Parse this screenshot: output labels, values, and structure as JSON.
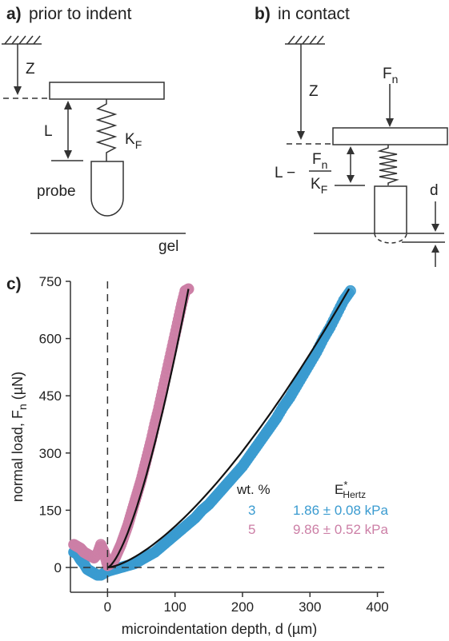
{
  "panel_a": {
    "letter": "a)",
    "title": "prior to indent",
    "labels": {
      "z": "Z",
      "l": "L",
      "kf_main": "K",
      "kf_sub": "F",
      "probe": "probe",
      "gel": "gel"
    }
  },
  "panel_b": {
    "letter": "b)",
    "title": "in contact",
    "labels": {
      "z": "Z",
      "fn_main": "F",
      "fn_sub": "n",
      "l_minus": "L −",
      "frac_num_main": "F",
      "frac_num_sub": "n",
      "frac_den_main": "K",
      "frac_den_sub": "F",
      "d": "d"
    }
  },
  "panel_c": {
    "letter": "c)",
    "legend": {
      "header_wt": "wt. %",
      "header_e_main": "E",
      "header_e_sup": "*",
      "header_e_sub": "Hertz",
      "rows": [
        {
          "wt": "3",
          "value": "1.86 ± 0.08 kPa",
          "color": "#3a9bd0"
        },
        {
          "wt": "5",
          "value": "9.86 ± 0.52 kPa",
          "color": "#cc7fa6"
        }
      ]
    }
  },
  "chart_data": {
    "type": "scatter",
    "xlabel": "microindentation depth, d (µm)",
    "ylabel_main": "normal load, F",
    "ylabel_sub": "n",
    "ylabel_unit": " (µN)",
    "xlim": [
      -55,
      410
    ],
    "ylim": [
      -65,
      750
    ],
    "x_ticks": [
      0,
      100,
      200,
      300,
      400
    ],
    "y_ticks": [
      0,
      150,
      300,
      450,
      600,
      750
    ],
    "reference_lines": {
      "x": 0,
      "y": 0,
      "style": "dashed"
    },
    "series": [
      {
        "name": "3",
        "color": "#3a9bd0",
        "points": [
          [
            -50,
            40
          ],
          [
            -45,
            35
          ],
          [
            -40,
            20
          ],
          [
            -35,
            10
          ],
          [
            -30,
            -5
          ],
          [
            -25,
            -10
          ],
          [
            -20,
            -15
          ],
          [
            -15,
            -20
          ],
          [
            -10,
            -20
          ],
          [
            -5,
            -15
          ],
          [
            0,
            -10
          ],
          [
            10,
            -5
          ],
          [
            20,
            0
          ],
          [
            30,
            5
          ],
          [
            40,
            10
          ],
          [
            50,
            20
          ],
          [
            60,
            30
          ],
          [
            70,
            40
          ],
          [
            80,
            55
          ],
          [
            90,
            70
          ],
          [
            100,
            85
          ],
          [
            110,
            100
          ],
          [
            120,
            115
          ],
          [
            130,
            130
          ],
          [
            140,
            150
          ],
          [
            150,
            165
          ],
          [
            160,
            185
          ],
          [
            170,
            205
          ],
          [
            180,
            225
          ],
          [
            190,
            245
          ],
          [
            200,
            265
          ],
          [
            210,
            290
          ],
          [
            220,
            315
          ],
          [
            230,
            340
          ],
          [
            240,
            365
          ],
          [
            250,
            390
          ],
          [
            260,
            420
          ],
          [
            270,
            445
          ],
          [
            280,
            475
          ],
          [
            290,
            505
          ],
          [
            300,
            535
          ],
          [
            310,
            565
          ],
          [
            320,
            600
          ],
          [
            330,
            630
          ],
          [
            340,
            665
          ],
          [
            350,
            700
          ],
          [
            360,
            725
          ]
        ],
        "fit": {
          "x_end": 358,
          "y_end": 730
        }
      },
      {
        "name": "5",
        "color": "#cc7fa6",
        "points": [
          [
            -50,
            60
          ],
          [
            -45,
            55
          ],
          [
            -40,
            50
          ],
          [
            -35,
            40
          ],
          [
            -30,
            35
          ],
          [
            -25,
            30
          ],
          [
            -20,
            25
          ],
          [
            -15,
            35
          ],
          [
            -10,
            60
          ],
          [
            -5,
            40
          ],
          [
            0,
            5
          ],
          [
            5,
            10
          ],
          [
            10,
            20
          ],
          [
            15,
            40
          ],
          [
            20,
            60
          ],
          [
            25,
            85
          ],
          [
            30,
            110
          ],
          [
            35,
            140
          ],
          [
            40,
            170
          ],
          [
            45,
            200
          ],
          [
            50,
            230
          ],
          [
            55,
            265
          ],
          [
            60,
            300
          ],
          [
            65,
            335
          ],
          [
            70,
            375
          ],
          [
            75,
            410
          ],
          [
            80,
            450
          ],
          [
            85,
            490
          ],
          [
            90,
            530
          ],
          [
            95,
            570
          ],
          [
            100,
            610
          ],
          [
            105,
            650
          ],
          [
            110,
            690
          ],
          [
            115,
            725
          ],
          [
            120,
            730
          ]
        ],
        "fit": {
          "x_end": 120,
          "y_end": 730
        }
      }
    ]
  }
}
